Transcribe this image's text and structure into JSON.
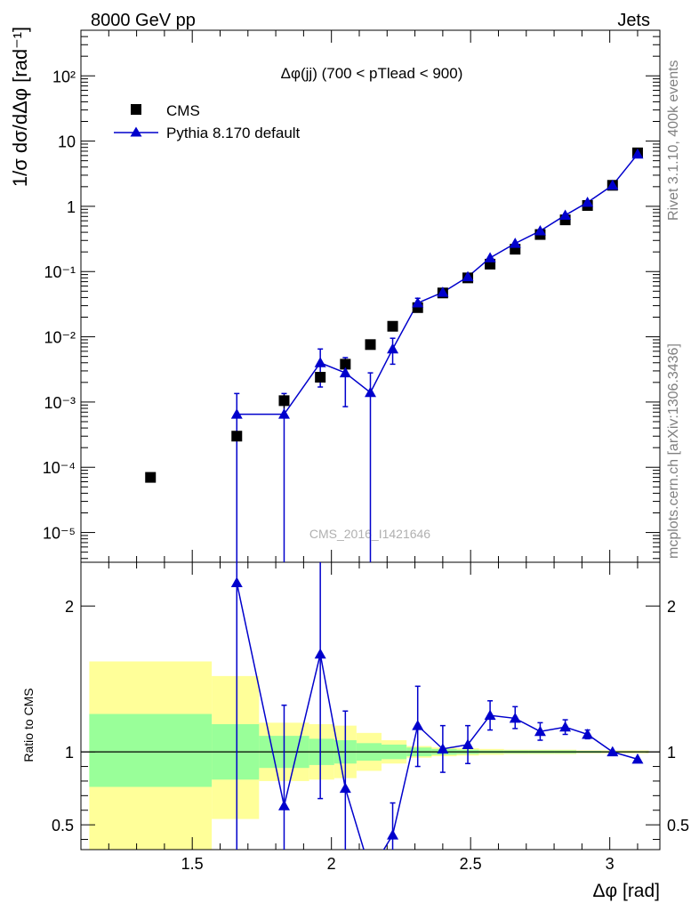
{
  "header": {
    "left": "8000 GeV pp",
    "right": "Jets"
  },
  "side_text": {
    "rivet": "Rivet 3.1.10,  400k events",
    "site": "mcplots.cern.ch [arXiv:1306.3436]"
  },
  "watermark": "CMS_2016_I1421646",
  "chart_data": {
    "type": "scatter",
    "title": "Δφ(jj) (700 < pTlead <  900)",
    "xlabel": "Δφ [rad]",
    "ylabel_main": "1/σ dσ/dΔφ [rad⁻¹]",
    "ylabel_ratio": "Ratio to CMS",
    "xlim": [
      1.1,
      3.18
    ],
    "ylim_main": [
      3.5e-06,
      500
    ],
    "ylim_ratio": [
      0.33,
      2.3
    ],
    "yscale_main": "log",
    "x_ticks": [
      "1.5",
      "2",
      "2.5",
      "3"
    ],
    "y_ticks_main": [
      "10⁻⁵",
      "10⁻⁴",
      "10⁻³",
      "10⁻²",
      "10⁻¹",
      "1",
      "10",
      "10²"
    ],
    "y_ticks_ratio": [
      "0.5",
      "1",
      "2"
    ],
    "legend": {
      "position": "top-left",
      "entries": [
        "CMS",
        "Pythia 8.170 default"
      ]
    },
    "series": [
      {
        "name": "CMS",
        "marker": "square",
        "color": "#000000",
        "points": [
          {
            "x": 1.35,
            "y": 7e-05
          },
          {
            "x": 1.66,
            "y": 0.0003
          },
          {
            "x": 1.83,
            "y": 0.00105,
            "ylo": 0.0008,
            "yhi": 0.0013
          },
          {
            "x": 1.96,
            "y": 0.0024
          },
          {
            "x": 2.05,
            "y": 0.0038
          },
          {
            "x": 2.14,
            "y": 0.0076
          },
          {
            "x": 2.22,
            "y": 0.0145
          },
          {
            "x": 2.31,
            "y": 0.028
          },
          {
            "x": 2.4,
            "y": 0.047
          },
          {
            "x": 2.49,
            "y": 0.08
          },
          {
            "x": 2.57,
            "y": 0.13
          },
          {
            "x": 2.66,
            "y": 0.22
          },
          {
            "x": 2.75,
            "y": 0.37
          },
          {
            "x": 2.84,
            "y": 0.62
          },
          {
            "x": 2.92,
            "y": 1.03
          },
          {
            "x": 3.01,
            "y": 2.1
          },
          {
            "x": 3.1,
            "y": 6.6
          }
        ]
      },
      {
        "name": "Pythia 8.170 default",
        "marker": "triangle",
        "color": "#0000cc",
        "points": [
          {
            "x": 1.66,
            "y": 0.00065,
            "ylo": 1e-07,
            "yhi": 0.00135
          },
          {
            "x": 1.83,
            "y": 0.00065,
            "ylo": 1e-07,
            "yhi": 0.00135
          },
          {
            "x": 1.96,
            "y": 0.004,
            "ylo": 0.0017,
            "yhi": 0.0065
          },
          {
            "x": 2.05,
            "y": 0.0028,
            "ylo": 0.00085,
            "yhi": 0.0048
          },
          {
            "x": 2.14,
            "y": 0.0014,
            "ylo": 1e-07,
            "yhi": 0.0028
          },
          {
            "x": 2.22,
            "y": 0.0065,
            "ylo": 0.0038,
            "yhi": 0.0095
          },
          {
            "x": 2.31,
            "y": 0.033,
            "ylo": 0.027,
            "yhi": 0.039
          },
          {
            "x": 2.4,
            "y": 0.048
          },
          {
            "x": 2.49,
            "y": 0.083
          },
          {
            "x": 2.57,
            "y": 0.162
          },
          {
            "x": 2.66,
            "y": 0.27
          },
          {
            "x": 2.75,
            "y": 0.42
          },
          {
            "x": 2.84,
            "y": 0.73
          },
          {
            "x": 2.92,
            "y": 1.15
          },
          {
            "x": 3.01,
            "y": 2.1
          },
          {
            "x": 3.1,
            "y": 6.3
          }
        ]
      }
    ],
    "ratio": {
      "name": "Pythia 8.170 default / CMS",
      "reference": 1.0,
      "points": [
        {
          "x": 1.66,
          "y": 2.16,
          "ylo": 0.0,
          "yhi": 3.5
        },
        {
          "x": 1.83,
          "y": 0.63,
          "ylo": 0.0,
          "yhi": 1.32
        },
        {
          "x": 1.96,
          "y": 1.67,
          "ylo": 0.68,
          "yhi": 2.65
        },
        {
          "x": 2.05,
          "y": 0.75,
          "ylo": 0.2,
          "yhi": 1.28
        },
        {
          "x": 2.14,
          "y": 0.18
        },
        {
          "x": 2.22,
          "y": 0.43,
          "ylo": 0.25,
          "yhi": 0.65
        },
        {
          "x": 2.31,
          "y": 1.18,
          "ylo": 0.9,
          "yhi": 1.45
        },
        {
          "x": 2.4,
          "y": 1.02,
          "ylo": 0.86,
          "yhi": 1.18
        },
        {
          "x": 2.49,
          "y": 1.05,
          "ylo": 0.92,
          "yhi": 1.18
        },
        {
          "x": 2.57,
          "y": 1.25,
          "ylo": 1.15,
          "yhi": 1.35
        },
        {
          "x": 2.66,
          "y": 1.23,
          "ylo": 1.16,
          "yhi": 1.31
        },
        {
          "x": 2.75,
          "y": 1.14,
          "ylo": 1.08,
          "yhi": 1.2
        },
        {
          "x": 2.84,
          "y": 1.17,
          "ylo": 1.12,
          "yhi": 1.22
        },
        {
          "x": 2.92,
          "y": 1.12,
          "ylo": 1.09,
          "yhi": 1.15
        },
        {
          "x": 3.01,
          "y": 1.0
        },
        {
          "x": 3.1,
          "y": 0.95
        }
      ],
      "bands": [
        {
          "x0": 1.13,
          "x1": 1.57,
          "stat_lo": 0.76,
          "stat_hi": 1.26,
          "tot_lo": 0.3,
          "tot_hi": 1.62
        },
        {
          "x0": 1.57,
          "x1": 1.74,
          "stat_lo": 0.81,
          "stat_hi": 1.19,
          "tot_lo": 0.54,
          "tot_hi": 1.52
        },
        {
          "x0": 1.74,
          "x1": 1.92,
          "stat_lo": 0.89,
          "stat_hi": 1.11,
          "tot_lo": 0.8,
          "tot_hi": 1.2
        },
        {
          "x0": 1.92,
          "x1": 2.01,
          "stat_lo": 0.91,
          "stat_hi": 1.09,
          "tot_lo": 0.81,
          "tot_hi": 1.19
        },
        {
          "x0": 2.01,
          "x1": 2.09,
          "stat_lo": 0.92,
          "stat_hi": 1.08,
          "tot_lo": 0.82,
          "tot_hi": 1.18
        },
        {
          "x0": 2.09,
          "x1": 2.18,
          "stat_lo": 0.94,
          "stat_hi": 1.06,
          "tot_lo": 0.87,
          "tot_hi": 1.13
        },
        {
          "x0": 2.18,
          "x1": 2.27,
          "stat_lo": 0.95,
          "stat_hi": 1.05,
          "tot_lo": 0.92,
          "tot_hi": 1.08
        },
        {
          "x0": 2.27,
          "x1": 2.36,
          "stat_lo": 0.97,
          "stat_hi": 1.03,
          "tot_lo": 0.96,
          "tot_hi": 1.04
        },
        {
          "x0": 2.36,
          "x1": 2.45,
          "stat_lo": 0.98,
          "stat_hi": 1.02,
          "tot_lo": 0.97,
          "tot_hi": 1.03
        },
        {
          "x0": 2.45,
          "x1": 2.53,
          "stat_lo": 0.985,
          "stat_hi": 1.015,
          "tot_lo": 0.975,
          "tot_hi": 1.025
        },
        {
          "x0": 2.53,
          "x1": 2.62,
          "stat_lo": 0.99,
          "stat_hi": 1.01,
          "tot_lo": 0.98,
          "tot_hi": 1.02
        },
        {
          "x0": 2.62,
          "x1": 2.71,
          "stat_lo": 0.99,
          "stat_hi": 1.01,
          "tot_lo": 0.985,
          "tot_hi": 1.015
        },
        {
          "x0": 2.71,
          "x1": 2.8,
          "stat_lo": 0.99,
          "stat_hi": 1.01,
          "tot_lo": 0.985,
          "tot_hi": 1.015
        },
        {
          "x0": 2.8,
          "x1": 2.88,
          "stat_lo": 0.99,
          "stat_hi": 1.01,
          "tot_lo": 0.985,
          "tot_hi": 1.015
        },
        {
          "x0": 2.88,
          "x1": 2.97,
          "stat_lo": 0.993,
          "stat_hi": 1.007,
          "tot_lo": 0.99,
          "tot_hi": 1.01
        },
        {
          "x0": 2.97,
          "x1": 3.06,
          "stat_lo": 0.995,
          "stat_hi": 1.005,
          "tot_lo": 0.99,
          "tot_hi": 1.01
        },
        {
          "x0": 3.06,
          "x1": 3.14,
          "stat_lo": 0.995,
          "stat_hi": 1.005,
          "tot_lo": 0.99,
          "tot_hi": 1.01
        }
      ]
    }
  }
}
